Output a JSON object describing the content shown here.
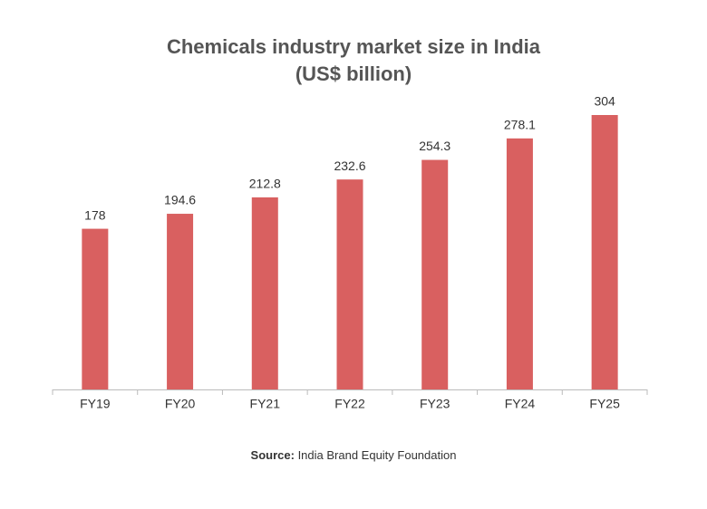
{
  "chart_data": {
    "type": "bar",
    "title": "Chemicals industry market size in India",
    "subtitle": "(US$ billion)",
    "categories": [
      "FY19",
      "FY20",
      "FY21",
      "FY22",
      "FY23",
      "FY24",
      "FY25"
    ],
    "values": [
      178,
      194.6,
      212.8,
      232.6,
      254.3,
      278.1,
      304
    ],
    "color": "#d96060",
    "source": {
      "label": "Source:",
      "text": "India Brand Equity Foundation"
    }
  }
}
